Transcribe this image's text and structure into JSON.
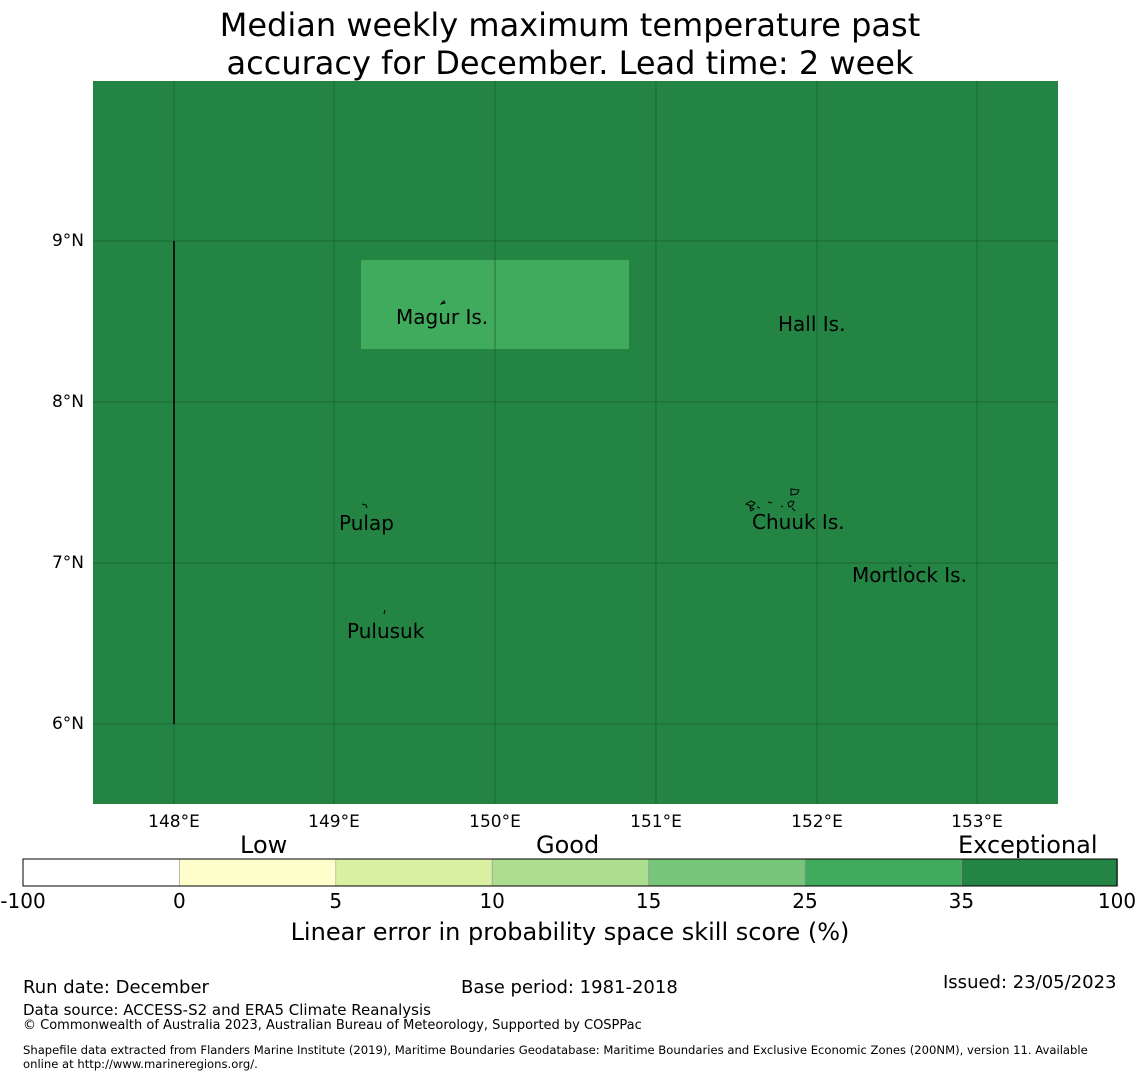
{
  "title": {
    "line1": "Median weekly maximum temperature past",
    "line2": "accuracy for December. Lead time: 2 week"
  },
  "map": {
    "background_color": "#238443",
    "highlight_color": "#41ab5d",
    "lat_labels": [
      "9°N",
      "8°N",
      "7°N",
      "6°N"
    ],
    "lon_labels": [
      "148°E",
      "149°E",
      "150°E",
      "151°E",
      "152°E",
      "153°E"
    ],
    "places": {
      "magur": "Magur Is.",
      "hall": "Hall Is.",
      "pulap": "Pulap",
      "chuuk": "Chuuk Is.",
      "mortlock": "Mortlock Is.",
      "pulusuk": "Pulusuk"
    }
  },
  "colorbar": {
    "categories": {
      "low": "Low",
      "good": "Good",
      "exceptional": "Exceptional"
    },
    "ticks": [
      "-100",
      "0",
      "5",
      "10",
      "15",
      "25",
      "35",
      "100"
    ],
    "colors": [
      "#ffffff",
      "#ffffcc",
      "#d9f0a3",
      "#addd8e",
      "#78c679",
      "#41ab5d",
      "#238443"
    ],
    "label": "Linear error in probability space skill score (%)"
  },
  "footer": {
    "run_date": "Run date: December",
    "base_period": "Base period: 1981-2018",
    "issued": "Issued: 23/05/2023",
    "data_source": "Data source: ACCESS-S2 and ERA5 Climate Reanalysis",
    "copyright": "© Commonwealth of Australia 2023, Australian Bureau of Meteorology, Supported by COSPPac",
    "shapefile_line1": "Shapefile data extracted from Flanders Marine Institute (2019), Maritime Boundaries Geodatabase: Maritime Boundaries and Exclusive Economic Zones (200NM), version 11. Available",
    "shapefile_line2": "online at http://www.marineregions.org/."
  }
}
